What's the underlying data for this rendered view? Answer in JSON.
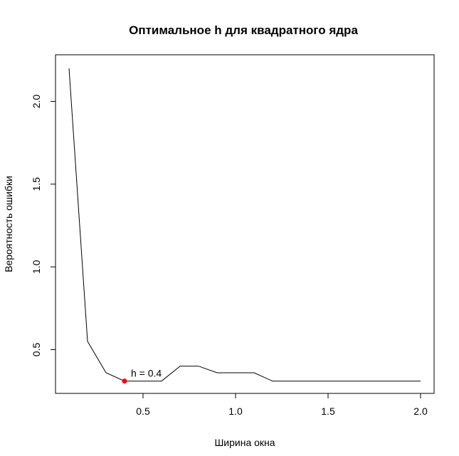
{
  "chart_data": {
    "type": "line",
    "title": "Оптимальное h  для квадратного ядра",
    "xlabel": "Ширина окна",
    "ylabel": "Вероятность ошибки",
    "xlim": [
      0.1,
      2.0
    ],
    "ylim": [
      0.3,
      2.2
    ],
    "x_ticks": [
      0.5,
      1.0,
      1.5,
      2.0
    ],
    "x_tick_labels": [
      "0.5",
      "1.0",
      "1.5",
      "2.0"
    ],
    "y_ticks": [
      0.5,
      1.0,
      1.5,
      2.0
    ],
    "y_tick_labels": [
      "0.5",
      "1.0",
      "1.5",
      "2.0"
    ],
    "grid": false,
    "series": [
      {
        "color": "#000000",
        "x": [
          0.1,
          0.2,
          0.3,
          0.4,
          0.5,
          0.6,
          0.7,
          0.8,
          0.9,
          1.0,
          1.1,
          1.2,
          1.3,
          1.4,
          1.5,
          1.6,
          1.7,
          1.8,
          1.9,
          2.0
        ],
        "y": [
          2.2,
          0.55,
          0.36,
          0.31,
          0.31,
          0.31,
          0.4,
          0.4,
          0.36,
          0.36,
          0.36,
          0.31,
          0.31,
          0.31,
          0.31,
          0.31,
          0.31,
          0.31,
          0.31,
          0.31
        ]
      }
    ],
    "highlight_point": {
      "x": 0.4,
      "y": 0.31,
      "color": "#ff0000",
      "label": "h = 0.4"
    }
  }
}
